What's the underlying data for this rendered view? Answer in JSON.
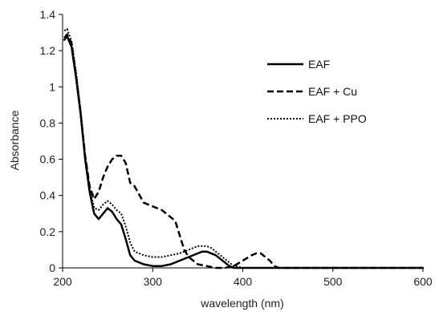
{
  "chart_data": {
    "type": "line",
    "xlabel": "wavelength (nm)",
    "ylabel": "Absorbance",
    "xlim": [
      200,
      600
    ],
    "ylim": [
      0,
      1.4
    ],
    "xticks": [
      200,
      300,
      400,
      500,
      600
    ],
    "yticks": [
      0,
      0.2,
      0.4,
      0.6,
      0.8,
      1,
      1.2,
      1.4
    ],
    "grid": false,
    "legend_position": "top-right",
    "series": [
      {
        "name": "EAF",
        "style": "solid",
        "color": "#000000",
        "x": [
          202,
          205,
          210,
          215,
          220,
          225,
          230,
          235,
          240,
          245,
          250,
          255,
          260,
          265,
          270,
          275,
          280,
          285,
          290,
          300,
          310,
          320,
          330,
          340,
          350,
          355,
          360,
          365,
          370,
          375,
          380,
          385,
          390,
          400,
          450,
          500,
          550,
          600
        ],
        "y": [
          1.26,
          1.28,
          1.22,
          1.05,
          0.85,
          0.6,
          0.42,
          0.3,
          0.27,
          0.3,
          0.33,
          0.31,
          0.27,
          0.24,
          0.16,
          0.07,
          0.04,
          0.03,
          0.02,
          0.01,
          0.01,
          0.02,
          0.04,
          0.06,
          0.08,
          0.09,
          0.09,
          0.08,
          0.07,
          0.05,
          0.03,
          0.01,
          0.0,
          0.0,
          0.0,
          0.0,
          0.0,
          0.0
        ]
      },
      {
        "name": "EAF + Cu",
        "style": "dashed",
        "color": "#000000",
        "x": [
          202,
          205,
          210,
          215,
          220,
          225,
          230,
          235,
          240,
          245,
          250,
          255,
          260,
          265,
          270,
          275,
          280,
          290,
          300,
          310,
          320,
          325,
          330,
          335,
          340,
          345,
          350,
          360,
          370,
          380,
          390,
          400,
          410,
          415,
          420,
          425,
          430,
          435,
          440,
          450,
          500,
          550,
          600
        ],
        "y": [
          1.27,
          1.29,
          1.24,
          1.06,
          0.85,
          0.62,
          0.45,
          0.38,
          0.42,
          0.5,
          0.56,
          0.6,
          0.62,
          0.62,
          0.58,
          0.47,
          0.45,
          0.36,
          0.34,
          0.32,
          0.28,
          0.26,
          0.18,
          0.1,
          0.06,
          0.04,
          0.02,
          0.01,
          0.0,
          0.0,
          0.01,
          0.04,
          0.07,
          0.08,
          0.08,
          0.06,
          0.04,
          0.01,
          0.0,
          0.0,
          0.0,
          0.0,
          0.0
        ]
      },
      {
        "name": "EAF + PPO",
        "style": "dotted",
        "color": "#000000",
        "x": [
          202,
          205,
          210,
          215,
          220,
          225,
          230,
          235,
          240,
          245,
          250,
          255,
          260,
          265,
          270,
          275,
          280,
          290,
          300,
          310,
          320,
          330,
          340,
          350,
          355,
          360,
          365,
          370,
          375,
          380,
          385,
          390,
          400,
          450,
          500,
          550,
          600
        ],
        "y": [
          1.31,
          1.32,
          1.25,
          1.08,
          0.87,
          0.62,
          0.44,
          0.33,
          0.32,
          0.35,
          0.37,
          0.35,
          0.32,
          0.3,
          0.23,
          0.14,
          0.09,
          0.07,
          0.06,
          0.06,
          0.07,
          0.08,
          0.1,
          0.12,
          0.12,
          0.12,
          0.11,
          0.09,
          0.07,
          0.05,
          0.03,
          0.01,
          0.0,
          0.0,
          0.0,
          0.0,
          0.0
        ]
      }
    ]
  }
}
